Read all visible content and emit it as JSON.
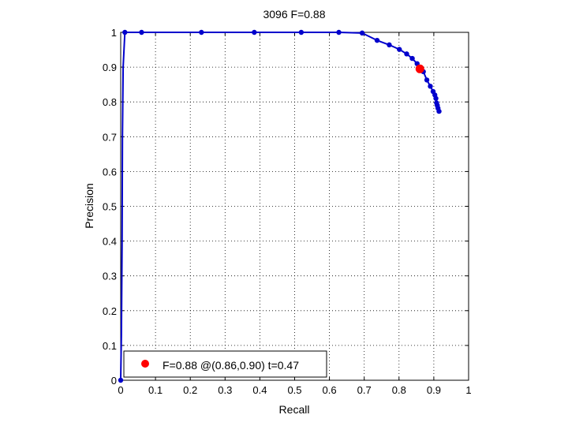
{
  "chart_data": {
    "type": "line",
    "title": "3096 F=0.88",
    "xlabel": "Recall",
    "ylabel": "Precision",
    "xlim": [
      0,
      1
    ],
    "ylim": [
      0,
      1
    ],
    "grid": true,
    "xticks": [
      0,
      0.1,
      0.2,
      0.3,
      0.4,
      0.5,
      0.6,
      0.7,
      0.8,
      0.9,
      1
    ],
    "yticks": [
      0,
      0.1,
      0.2,
      0.3,
      0.4,
      0.5,
      0.6,
      0.7,
      0.8,
      0.9,
      1
    ],
    "xtick_labels": [
      "0",
      "0.1",
      "0.2",
      "0.3",
      "0.4",
      "0.5",
      "0.6",
      "0.7",
      "0.8",
      "0.9",
      "1"
    ],
    "ytick_labels": [
      "0",
      "0.1",
      "0.2",
      "0.3",
      "0.4",
      "0.5",
      "0.6",
      "0.7",
      "0.8",
      "0.9",
      "1"
    ],
    "series": [
      {
        "color": "#0000cc",
        "x": [
          0.0,
          0.002,
          0.004,
          0.005,
          0.007,
          0.012,
          0.06,
          0.232,
          0.384,
          0.519,
          0.627,
          0.694,
          0.737,
          0.772,
          0.801,
          0.822,
          0.838,
          0.852,
          0.87,
          0.88,
          0.89,
          0.898,
          0.903,
          0.906,
          0.908,
          0.91,
          0.912,
          0.915
        ],
        "y": [
          0.0,
          0.13,
          0.4,
          0.7,
          0.9,
          1.0,
          1.0,
          1.0,
          1.0,
          1.0,
          1.0,
          0.998,
          0.977,
          0.964,
          0.951,
          0.938,
          0.925,
          0.91,
          0.887,
          0.863,
          0.845,
          0.83,
          0.82,
          0.81,
          0.797,
          0.79,
          0.782,
          0.773
        ],
        "markers": [
          [
            0.0,
            0.0
          ],
          [
            0.012,
            1.0
          ],
          [
            0.06,
            1.0
          ],
          [
            0.232,
            1.0
          ],
          [
            0.384,
            1.0
          ],
          [
            0.519,
            1.0
          ],
          [
            0.627,
            1.0
          ],
          [
            0.694,
            0.998
          ],
          [
            0.737,
            0.977
          ],
          [
            0.772,
            0.964
          ],
          [
            0.801,
            0.951
          ],
          [
            0.822,
            0.938
          ],
          [
            0.838,
            0.925
          ],
          [
            0.852,
            0.91
          ],
          [
            0.87,
            0.887
          ],
          [
            0.88,
            0.863
          ],
          [
            0.89,
            0.845
          ],
          [
            0.898,
            0.83
          ],
          [
            0.903,
            0.82
          ],
          [
            0.906,
            0.81
          ],
          [
            0.908,
            0.797
          ],
          [
            0.91,
            0.79
          ],
          [
            0.912,
            0.782
          ],
          [
            0.915,
            0.773
          ]
        ]
      }
    ],
    "highlight": {
      "x": 0.86,
      "y": 0.895,
      "color": "#ff0000"
    },
    "legend": {
      "position": "bottom-left",
      "text": "F=0.88 @(0.86,0.90) t=0.47",
      "marker_color": "#ff0000"
    }
  }
}
